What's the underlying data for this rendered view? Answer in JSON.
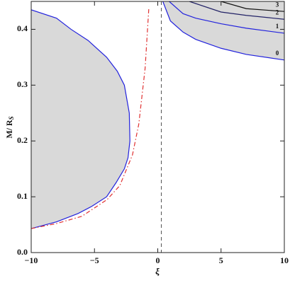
{
  "chart_data": {
    "type": "line",
    "x_label": "ξ",
    "y_label": "M/ R",
    "y_label_subscript": "S",
    "xlim": [
      -10,
      10
    ],
    "ylim": [
      0,
      0.45
    ],
    "xticks": [
      {
        "value": -10,
        "label": "−10"
      },
      {
        "value": -5,
        "label": "−5"
      },
      0,
      5,
      10
    ],
    "yticks": [
      {
        "value": 0,
        "label": "0.0"
      },
      0.1,
      0.2,
      0.3,
      0.4
    ],
    "shade_color": "#d9d9d9",
    "series": [
      {
        "color": "#2222dd",
        "fill_to": "xmin",
        "x": [
          -10,
          -8,
          -6.85,
          -5.5,
          -4.04,
          -3.2,
          -2.64,
          -2.25,
          -2.2,
          -2.35,
          -2.64,
          -3.3,
          -4.04,
          -5.2,
          -6.3,
          -8,
          -10
        ],
        "values": [
          0.435,
          0.42,
          0.4,
          0.38,
          0.35,
          0.325,
          0.3,
          0.25,
          0.2,
          0.17,
          0.15,
          0.125,
          0.1,
          0.083,
          0.07,
          0.055,
          0.043
        ]
      },
      {
        "color": "#e03030",
        "dash": "dashdot",
        "x": [
          -10,
          -8,
          -6,
          -4,
          -3,
          -2,
          -1.5,
          -1,
          -0.7
        ],
        "values": [
          0.043,
          0.052,
          0.065,
          0.095,
          0.12,
          0.175,
          0.23,
          0.33,
          0.44
        ]
      },
      {
        "name": "0",
        "color": "#2222dd",
        "fill_to": "ymax",
        "x": [
          0.4,
          1,
          2,
          3,
          5,
          7,
          10
        ],
        "values": [
          0.45,
          0.415,
          0.395,
          0.382,
          0.366,
          0.355,
          0.345
        ]
      },
      {
        "name": "1",
        "color": "#2222dd",
        "x": [
          0.9,
          2,
          3,
          5,
          7,
          10
        ],
        "values": [
          0.45,
          0.428,
          0.42,
          0.41,
          0.402,
          0.393
        ]
      },
      {
        "name": "2",
        "color": "#222266",
        "x": [
          2.5,
          5,
          7,
          10
        ],
        "values": [
          0.45,
          0.431,
          0.425,
          0.418
        ]
      },
      {
        "name": "3",
        "color": "#111111",
        "x": [
          5,
          7,
          10
        ],
        "values": [
          0.45,
          0.437,
          0.432
        ]
      }
    ],
    "vlines": [
      {
        "x": 0.28,
        "color": "#555555",
        "dash": "dashed"
      }
    ]
  }
}
